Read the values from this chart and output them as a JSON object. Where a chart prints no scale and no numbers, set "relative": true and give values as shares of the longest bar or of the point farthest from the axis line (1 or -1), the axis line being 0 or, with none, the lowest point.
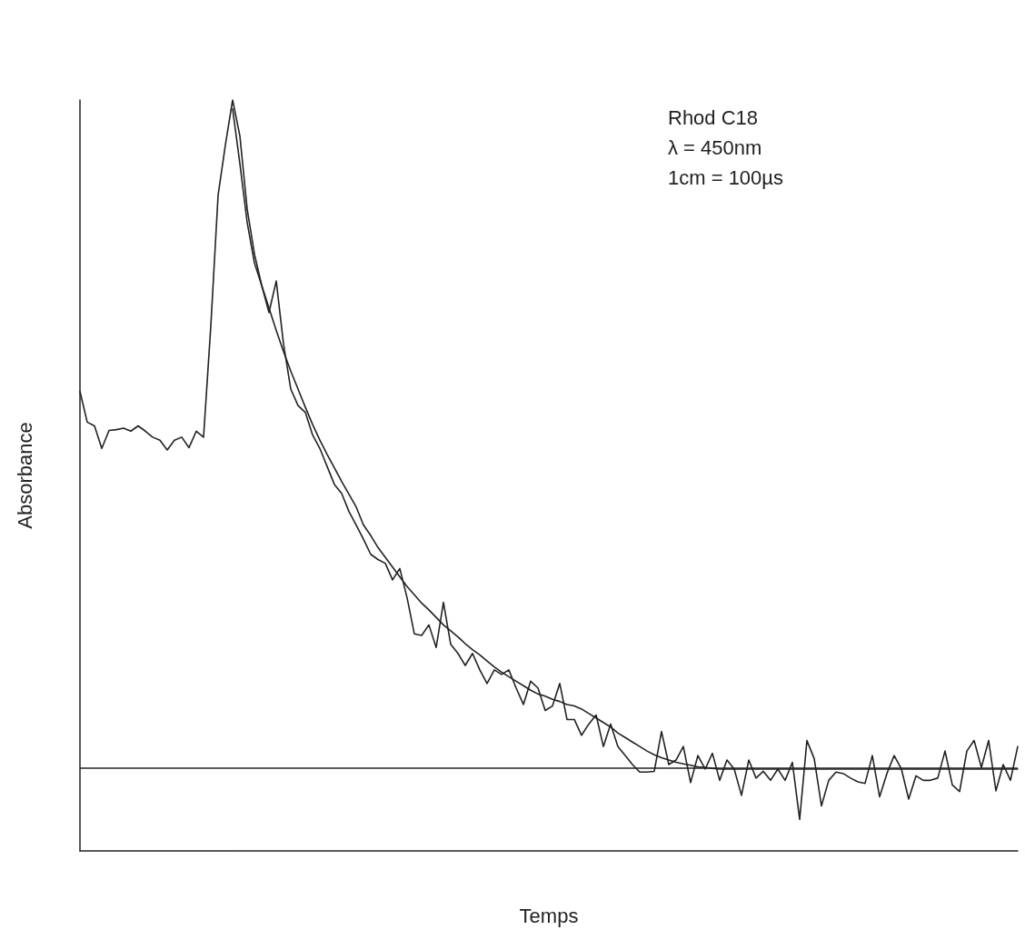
{
  "chart_data": {
    "type": "line",
    "relative": true,
    "xlabel": "Temps",
    "ylabel": "Absorbance",
    "annotations": [
      "Rhod C18",
      "λ = 450nm",
      "1cm = 100µs"
    ],
    "categories": [
      null,
      null,
      null,
      null,
      null,
      null,
      null,
      null,
      null,
      null,
      null,
      null,
      null,
      null,
      null,
      null,
      null,
      null,
      null,
      null,
      null,
      null,
      null,
      null,
      null,
      null,
      null,
      null,
      null,
      null,
      null,
      null,
      null,
      null,
      null,
      null,
      null,
      null,
      null,
      null,
      null,
      null,
      null,
      null,
      null,
      null,
      null,
      null,
      null,
      null,
      null,
      null,
      null,
      null,
      null,
      null,
      null,
      null,
      null,
      null,
      null,
      null,
      null,
      null,
      null,
      null,
      null,
      null,
      null,
      null,
      null,
      null,
      null,
      null,
      null,
      null,
      null,
      null,
      null,
      null,
      null,
      null,
      null,
      null,
      null,
      null,
      null,
      null,
      null,
      null,
      null,
      null,
      null,
      null,
      null,
      null,
      null,
      null,
      null,
      null,
      null,
      null,
      null,
      null,
      null,
      null,
      null,
      null,
      null,
      null,
      null,
      null,
      null,
      null,
      null,
      null,
      null,
      null,
      null,
      null,
      null,
      null,
      null,
      null,
      null,
      null,
      null,
      null,
      null,
      null
    ],
    "series": [
      {
        "color": "#222222",
        "values": [
          0.612,
          0.571,
          0.566,
          0.536,
          0.56,
          0.561,
          0.563,
          0.559,
          0.566,
          0.559,
          0.551,
          0.547,
          0.534,
          0.547,
          0.551,
          0.537,
          0.559,
          0.551,
          0.699,
          0.873,
          0.94,
          1,
          0.952,
          0.855,
          0.795,
          0.753,
          0.717,
          0.759,
          0.675,
          0.615,
          0.593,
          0.584,
          0.554,
          0.536,
          0.512,
          0.488,
          0.476,
          0.452,
          0.434,
          0.415,
          0.395,
          0.388,
          0.383,
          0.361,
          0.376,
          0.337,
          0.289,
          0.287,
          0.301,
          0.271,
          0.331,
          0.275,
          0.263,
          0.247,
          0.263,
          0.241,
          0.223,
          0.241,
          0.235,
          0.241,
          0.217,
          0.195,
          0.226,
          0.217,
          0.187,
          0.193,
          0.223,
          0.175,
          0.175,
          0.154,
          0.169,
          0.181,
          0.139,
          0.169,
          0.139,
          0.127,
          0.115,
          0.105,
          0.105,
          0.106,
          0.159,
          0.115,
          0.121,
          0.139,
          0.091,
          0.127,
          0.109,
          0.13,
          0.094,
          0.121,
          0.109,
          0.074,
          0.121,
          0.097,
          0.106,
          0.094,
          0.109,
          0.094,
          0.118,
          0.042,
          0.147,
          0.123,
          0.06,
          0.094,
          0.105,
          0.103,
          0.097,
          0.092,
          0.09,
          0.127,
          0.072,
          0.103,
          0.127,
          0.109,
          0.069,
          0.1,
          0.094,
          0.094,
          0.097,
          0.133,
          0.088,
          0.079,
          0.133,
          0.147,
          0.111,
          0.147,
          0.08,
          0.115,
          0.094,
          0.139
        ]
      },
      {
        "color": "#222222",
        "values": [
          null,
          null,
          null,
          null,
          null,
          null,
          null,
          null,
          null,
          null,
          null,
          null,
          null,
          null,
          null,
          null,
          null,
          null,
          null,
          null,
          null,
          0.988,
          0.915,
          0.837,
          0.783,
          0.753,
          0.723,
          0.693,
          0.665,
          0.639,
          0.615,
          0.591,
          0.568,
          0.547,
          0.528,
          0.51,
          0.492,
          0.475,
          0.458,
          0.434,
          0.42,
          0.404,
          0.391,
          0.378,
          0.365,
          0.352,
          0.341,
          0.33,
          0.321,
          0.311,
          0.301,
          0.293,
          0.285,
          0.276,
          0.268,
          0.261,
          0.253,
          0.245,
          0.238,
          0.232,
          0.226,
          0.22,
          0.214,
          0.209,
          0.206,
          0.202,
          0.199,
          0.195,
          0.193,
          0.189,
          0.183,
          0.177,
          0.171,
          0.165,
          0.157,
          0.151,
          0.145,
          0.139,
          0.133,
          0.128,
          0.124,
          0.121,
          0.118,
          0.116,
          0.114,
          0.112,
          0.111,
          0.11,
          0.109,
          0.109,
          0.109,
          0.109,
          0.109,
          0.109,
          0.109,
          0.109,
          0.109,
          0.109,
          0.109,
          0.109,
          0.109,
          0.109,
          0.109,
          0.109,
          0.109,
          0.109,
          0.109,
          0.109,
          0.109,
          0.109,
          0.109,
          0.109,
          0.109,
          0.109,
          0.109,
          0.109,
          0.109,
          0.109,
          0.109,
          0.109,
          0.109,
          0.109,
          0.109,
          0.109,
          0.109,
          0.109,
          0.109,
          0.109,
          0.109,
          0.109
        ]
      }
    ],
    "ref_lines": [
      {
        "axis": "y",
        "value": 0.109,
        "color": "#222222"
      }
    ],
    "marker": "none"
  }
}
